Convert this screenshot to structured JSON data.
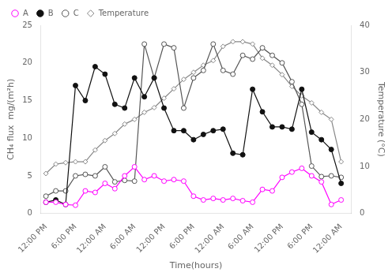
{
  "chart_data": {
    "type": "line",
    "x": [
      0,
      2,
      4,
      6,
      8,
      10,
      12,
      14,
      16,
      18,
      20,
      22,
      24,
      26,
      28,
      30,
      32,
      34,
      36,
      38,
      40,
      42,
      44,
      46,
      48,
      50,
      52,
      54,
      56,
      58,
      60
    ],
    "series": [
      {
        "name": "A",
        "color": "#FF00FF",
        "marker": "open_circle",
        "values": [
          1.5,
          1.5,
          1.2,
          1.1,
          3.0,
          2.8,
          4.0,
          3.3,
          5.0,
          6.2,
          4.5,
          5.0,
          4.3,
          4.5,
          4.3,
          2.3,
          1.8,
          2.0,
          1.8,
          2.0,
          1.7,
          1.5,
          3.2,
          3.0,
          4.8,
          5.5,
          6.0,
          5.0,
          4.2,
          1.2,
          1.8
        ]
      },
      {
        "name": "B",
        "color": "#111111",
        "marker": "circle",
        "values": [
          1.5,
          1.8,
          1.2,
          17.0,
          15.0,
          19.5,
          18.5,
          14.5,
          14.0,
          18.0,
          15.5,
          18.0,
          14.0,
          11.0,
          11.0,
          9.8,
          10.5,
          11.0,
          11.2,
          8.0,
          7.8,
          16.5,
          13.5,
          11.5,
          11.5,
          11.2,
          16.5,
          10.8,
          9.8,
          8.5,
          4.0
        ]
      },
      {
        "name": "C",
        "color": "#555555",
        "marker": "open_circle",
        "values": [
          2.3,
          3.0,
          3.0,
          5.0,
          5.2,
          5.0,
          6.2,
          4.2,
          4.4,
          4.3,
          22.5,
          18.0,
          22.5,
          22.0,
          14.0,
          18.0,
          19.0,
          22.5,
          19.0,
          18.5,
          21.0,
          20.5,
          22.0,
          21.0,
          20.0,
          17.5,
          14.5,
          6.3,
          4.9,
          5.0,
          4.8
        ]
      },
      {
        "name": "Temperature",
        "color": "#888888",
        "marker": "open_diamond",
        "axis": "y2",
        "values": [
          8.5,
          10.5,
          10.8,
          11.0,
          11.0,
          13.5,
          15.5,
          17.0,
          19.0,
          20.0,
          21.5,
          22.5,
          24.5,
          26.5,
          28.5,
          30.0,
          31.5,
          32.5,
          35.5,
          36.5,
          36.5,
          36.0,
          33.0,
          31.5,
          29.5,
          27.0,
          25.0,
          23.5,
          21.5,
          20.0,
          11.0
        ]
      }
    ],
    "xlabel": "Time(hours)",
    "ylabel": "CH₄ flux  mg/(m²h)",
    "y2label": "Temperature (°C)",
    "xlim": [
      -1,
      62
    ],
    "xticks": [
      {
        "value": 0,
        "label": "12:00 PM"
      },
      {
        "value": 6,
        "label": "6:00 PM"
      },
      {
        "value": 12,
        "label": "12:00 AM"
      },
      {
        "value": 18,
        "label": "6:00 AM"
      },
      {
        "value": 24,
        "label": "12:00 PM"
      },
      {
        "value": 30,
        "label": "6:00 PM"
      },
      {
        "value": 36,
        "label": "12:00 AM"
      },
      {
        "value": 42,
        "label": "6:00 AM"
      },
      {
        "value": 48,
        "label": "12:00 PM"
      },
      {
        "value": 54,
        "label": "6:00 PM"
      },
      {
        "value": 60,
        "label": "12:00 AM"
      }
    ],
    "ylim": [
      0,
      25
    ],
    "yticks": [
      0,
      5,
      10,
      15,
      20,
      25
    ],
    "y2lim": [
      0,
      40
    ],
    "y2ticks": [
      0,
      10,
      20,
      30,
      40
    ],
    "grid": false,
    "legend": "upper left"
  }
}
